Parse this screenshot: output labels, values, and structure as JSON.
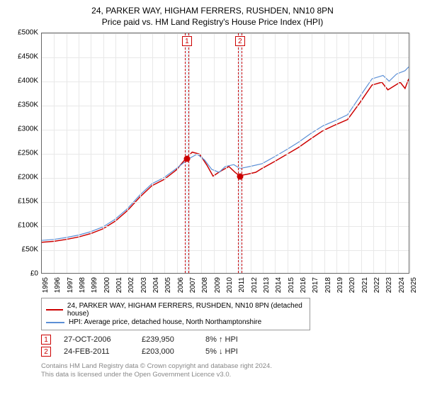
{
  "title": {
    "line1": "24, PARKER WAY, HIGHAM FERRERS, RUSHDEN, NN10 8PN",
    "line2": "Price paid vs. HM Land Registry's House Price Index (HPI)",
    "fontsize": 12,
    "color": "#000000"
  },
  "chart": {
    "type": "line",
    "background_color": "#ffffff",
    "grid_color": "#e8e8e8",
    "border_color": "#666666",
    "x": {
      "min": 1995,
      "max": 2025,
      "tick_step": 1,
      "labels": [
        "1995",
        "1996",
        "1997",
        "1998",
        "1999",
        "2000",
        "2001",
        "2002",
        "2003",
        "2004",
        "2005",
        "2006",
        "2007",
        "2008",
        "2009",
        "2010",
        "2011",
        "2012",
        "2013",
        "2014",
        "2015",
        "2016",
        "2017",
        "2018",
        "2019",
        "2020",
        "2021",
        "2022",
        "2023",
        "2024",
        "2025"
      ],
      "label_fontsize": 10,
      "label_rotation": -90
    },
    "y": {
      "min": 0,
      "max": 500000,
      "tick_step": 50000,
      "labels": [
        "£0",
        "£50K",
        "£100K",
        "£150K",
        "£200K",
        "£250K",
        "£300K",
        "£350K",
        "£400K",
        "£450K",
        "£500K"
      ],
      "label_fontsize": 10
    },
    "series": [
      {
        "name": "price_paid",
        "label": "24, PARKER WAY, HIGHAM FERRERS, RUSHDEN, NN10 8PN (detached house)",
        "color": "#cc0000",
        "line_width": 1.5,
        "points": [
          [
            1995,
            64000
          ],
          [
            1996,
            66000
          ],
          [
            1997,
            70000
          ],
          [
            1998,
            75000
          ],
          [
            1999,
            82000
          ],
          [
            2000,
            92000
          ],
          [
            2001,
            108000
          ],
          [
            2002,
            130000
          ],
          [
            2003,
            158000
          ],
          [
            2004,
            182000
          ],
          [
            2005,
            195000
          ],
          [
            2006,
            215000
          ],
          [
            2006.82,
            239950
          ],
          [
            2007.3,
            252000
          ],
          [
            2007.9,
            248000
          ],
          [
            2008.5,
            225000
          ],
          [
            2009,
            202000
          ],
          [
            2009.6,
            212000
          ],
          [
            2010.3,
            222000
          ],
          [
            2010.8,
            210000
          ],
          [
            2011.15,
            203000
          ],
          [
            2011.8,
            206000
          ],
          [
            2012.5,
            210000
          ],
          [
            2013,
            218000
          ],
          [
            2014,
            232000
          ],
          [
            2015,
            247000
          ],
          [
            2016,
            262000
          ],
          [
            2017,
            280000
          ],
          [
            2018,
            297000
          ],
          [
            2019,
            309000
          ],
          [
            2020,
            320000
          ],
          [
            2021,
            355000
          ],
          [
            2022,
            392000
          ],
          [
            2022.8,
            398000
          ],
          [
            2023.3,
            382000
          ],
          [
            2023.8,
            390000
          ],
          [
            2024.3,
            398000
          ],
          [
            2024.7,
            385000
          ],
          [
            2025,
            405000
          ]
        ]
      },
      {
        "name": "hpi",
        "label": "HPI: Average price, detached house, North Northamptonshire",
        "color": "#5b8fd6",
        "line_width": 1.2,
        "points": [
          [
            1995,
            68000
          ],
          [
            1996,
            70000
          ],
          [
            1997,
            74000
          ],
          [
            1998,
            79000
          ],
          [
            1999,
            86000
          ],
          [
            2000,
            96000
          ],
          [
            2001,
            112000
          ],
          [
            2002,
            134000
          ],
          [
            2003,
            162000
          ],
          [
            2004,
            186000
          ],
          [
            2005,
            199000
          ],
          [
            2006,
            218000
          ],
          [
            2007,
            238000
          ],
          [
            2007.7,
            248000
          ],
          [
            2008.3,
            236000
          ],
          [
            2008.9,
            216000
          ],
          [
            2009.5,
            210000
          ],
          [
            2010,
            222000
          ],
          [
            2010.7,
            226000
          ],
          [
            2011.2,
            218000
          ],
          [
            2012,
            222000
          ],
          [
            2013,
            228000
          ],
          [
            2014,
            242000
          ],
          [
            2015,
            257000
          ],
          [
            2016,
            273000
          ],
          [
            2017,
            291000
          ],
          [
            2018,
            307000
          ],
          [
            2019,
            318000
          ],
          [
            2020,
            330000
          ],
          [
            2021,
            368000
          ],
          [
            2022,
            405000
          ],
          [
            2022.9,
            412000
          ],
          [
            2023.4,
            400000
          ],
          [
            2024,
            415000
          ],
          [
            2024.7,
            422000
          ],
          [
            2025,
            430000
          ]
        ]
      }
    ],
    "markers": [
      {
        "id": "1",
        "x": 2006.82,
        "y": 239950,
        "color": "#cc0000"
      },
      {
        "id": "2",
        "x": 2011.15,
        "y": 203000,
        "color": "#cc0000"
      }
    ],
    "marker_badges_top_y": -22,
    "sale_bands": {
      "color": "rgba(200,215,240,0.28)",
      "dash_color": "#cc0000",
      "width_years": 0.35
    }
  },
  "legend": {
    "border_color": "#999999",
    "fontsize": 10,
    "items": [
      {
        "color": "#cc0000",
        "label": "24, PARKER WAY, HIGHAM FERRERS, RUSHDEN, NN10 8PN (detached house)"
      },
      {
        "color": "#5b8fd6",
        "label": "HPI: Average price, detached house, North Northamptonshire"
      }
    ]
  },
  "sales_table": {
    "rows": [
      {
        "badge": "1",
        "date": "27-OCT-2006",
        "price": "£239,950",
        "delta": "8% ↑ HPI"
      },
      {
        "badge": "2",
        "date": "24-FEB-2011",
        "price": "£203,000",
        "delta": "5% ↓ HPI"
      }
    ],
    "fontsize": 11
  },
  "footer": {
    "line1": "Contains HM Land Registry data © Crown copyright and database right 2024.",
    "line2": "This data is licensed under the Open Government Licence v3.0.",
    "color": "#888888",
    "fontsize": 9.5
  }
}
